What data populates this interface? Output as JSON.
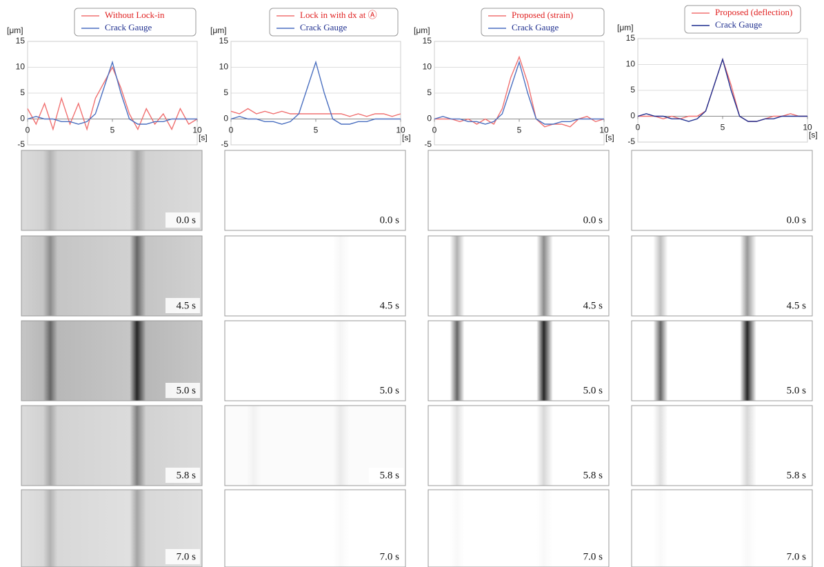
{
  "chart_data": [
    {
      "type": "line",
      "y_label": "[μm]",
      "x_label": "[s]",
      "x": [
        0,
        0.5,
        1,
        1.5,
        2,
        2.5,
        3,
        3.5,
        4,
        4.5,
        5,
        5.5,
        6,
        6.5,
        7,
        7.5,
        8,
        8.5,
        9,
        9.5,
        10
      ],
      "series": [
        {
          "name": "Without Lock-in",
          "color": "#f07070",
          "values": [
            2,
            -1,
            3,
            -2,
            4,
            -1,
            3,
            -2,
            4,
            7,
            10,
            6,
            1,
            -2,
            2,
            -1,
            1,
            -2,
            2,
            -1,
            0
          ]
        },
        {
          "name": "Crack Gauge",
          "color": "#4a6fc0",
          "values": [
            0,
            0.5,
            0,
            0,
            -0.5,
            -0.5,
            -1,
            -0.5,
            1,
            6,
            11,
            5,
            0,
            -1,
            -1,
            -0.5,
            -0.5,
            0,
            0,
            0,
            0
          ]
        }
      ],
      "xlim": [
        0,
        10
      ],
      "xticks": [
        0,
        5,
        10
      ],
      "ylim": [
        -5,
        15
      ],
      "yticks": [
        -5,
        0,
        5,
        10,
        15
      ],
      "grid": true
    },
    {
      "type": "line",
      "y_label": "[μm]",
      "x_label": "[s]",
      "x": [
        0,
        0.5,
        1,
        1.5,
        2,
        2.5,
        3,
        3.5,
        4,
        4.5,
        5,
        5.5,
        6,
        6.5,
        7,
        7.5,
        8,
        8.5,
        9,
        9.5,
        10
      ],
      "series": [
        {
          "name": "Lock in with dx at Ⓐ",
          "color": "#f07070",
          "values": [
            1.5,
            1,
            2,
            1,
            1.5,
            1,
            1.5,
            1,
            1,
            1,
            1,
            1,
            1,
            1,
            0.5,
            1,
            0.5,
            1,
            1,
            0.5,
            1
          ]
        },
        {
          "name": "Crack Gauge",
          "color": "#4a6fc0",
          "values": [
            0,
            0.5,
            0,
            0,
            -0.5,
            -0.5,
            -1,
            -0.5,
            1,
            6,
            11,
            5,
            0,
            -1,
            -1,
            -0.5,
            -0.5,
            0,
            0,
            0,
            0
          ]
        }
      ],
      "xlim": [
        0,
        10
      ],
      "xticks": [
        0,
        5,
        10
      ],
      "ylim": [
        -5,
        15
      ],
      "yticks": [
        -5,
        0,
        5,
        10,
        15
      ],
      "grid": true
    },
    {
      "type": "line",
      "y_label": "[μm]",
      "x_label": "[s]",
      "x": [
        0,
        0.5,
        1,
        1.5,
        2,
        2.5,
        3,
        3.5,
        4,
        4.5,
        5,
        5.5,
        6,
        6.5,
        7,
        7.5,
        8,
        8.5,
        9,
        9.5,
        10
      ],
      "series": [
        {
          "name": "Proposed (strain)",
          "color": "#f07070",
          "values": [
            0,
            0,
            0,
            -0.5,
            0,
            -1,
            0,
            -1,
            2,
            8,
            12,
            7,
            0,
            -1.5,
            -1,
            -1,
            -1.5,
            0,
            0.5,
            -0.5,
            0
          ]
        },
        {
          "name": "Crack Gauge",
          "color": "#4a6fc0",
          "values": [
            0,
            0.5,
            0,
            0,
            -0.5,
            -0.5,
            -1,
            -0.5,
            1,
            6,
            11,
            5,
            0,
            -1,
            -1,
            -0.5,
            -0.5,
            0,
            0,
            0,
            0
          ]
        }
      ],
      "xlim": [
        0,
        10
      ],
      "xticks": [
        0,
        5,
        10
      ],
      "ylim": [
        -5,
        15
      ],
      "yticks": [
        -5,
        0,
        5,
        10,
        15
      ],
      "grid": true
    },
    {
      "type": "line",
      "y_label": "[μm]",
      "x_label": "[s]",
      "x": [
        0,
        0.5,
        1,
        1.5,
        2,
        2.5,
        3,
        3.5,
        4,
        4.5,
        5,
        5.5,
        6,
        6.5,
        7,
        7.5,
        8,
        8.5,
        9,
        9.5,
        10
      ],
      "series": [
        {
          "name": "Proposed (deflection)",
          "color": "#f07070",
          "values": [
            0,
            0,
            0,
            -0.5,
            0,
            -0.5,
            0,
            0,
            1,
            6,
            11,
            6,
            0,
            -1,
            -1,
            -0.5,
            0,
            0,
            0.5,
            0,
            0
          ]
        },
        {
          "name": "Crack Gauge",
          "color": "#1f2f8f",
          "values": [
            0,
            0.5,
            0,
            0,
            -0.5,
            -0.5,
            -1,
            -0.5,
            1,
            6,
            11,
            5,
            0,
            -1,
            -1,
            -0.5,
            -0.5,
            0,
            0,
            0,
            0
          ]
        }
      ],
      "xlim": [
        0,
        10
      ],
      "xticks": [
        0,
        5,
        10
      ],
      "ylim": [
        -5,
        15
      ],
      "yticks": [
        -5,
        0,
        5,
        10,
        15
      ],
      "grid": true
    }
  ],
  "image_grid": {
    "times": [
      "0.0 s",
      "4.5 s",
      "5.0 s",
      "5.8 s",
      "7.0 s"
    ]
  }
}
